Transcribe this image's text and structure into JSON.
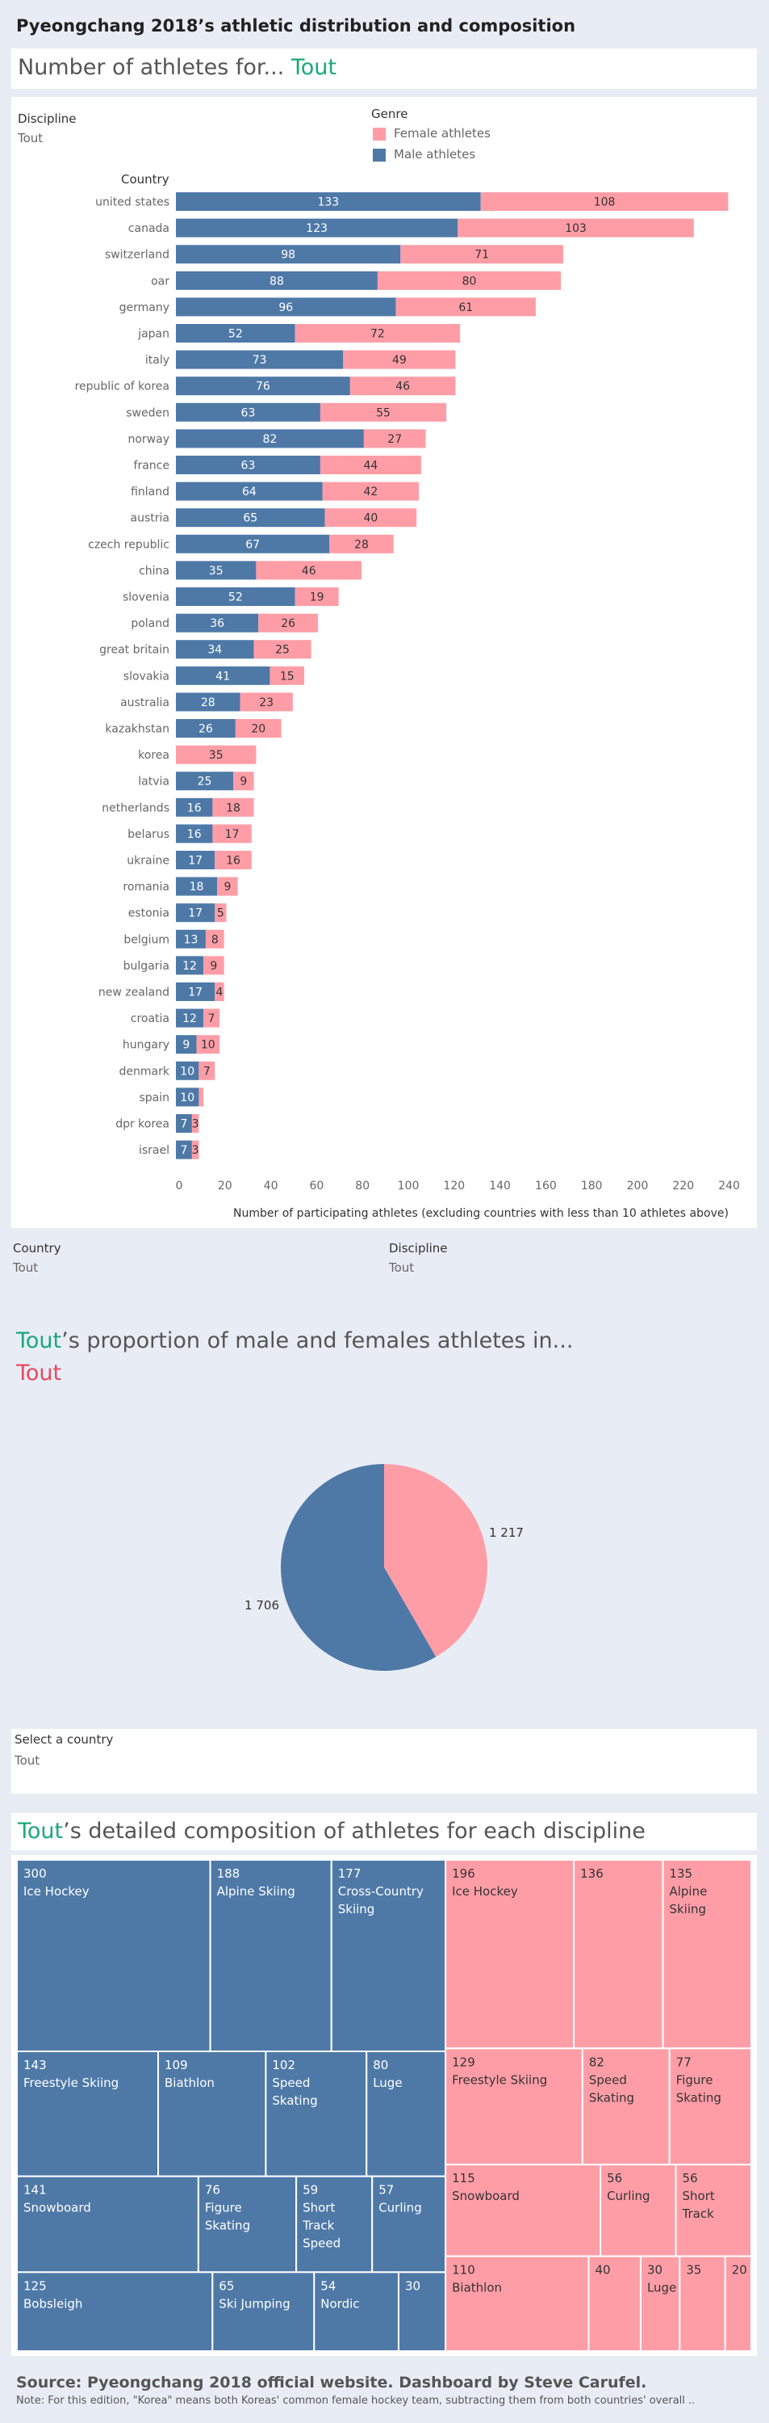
{
  "header": {
    "title": "Pyeongchang 2018’s athletic distribution and composition"
  },
  "section1": {
    "title_prefix": "Number of athletes for... ",
    "title_accent": "Tout"
  },
  "filters_top": {
    "discipline_label": "Discipline",
    "discipline_value": "Tout"
  },
  "legend": {
    "title": "Genre",
    "female_label": "Female athletes",
    "male_label": "Male athletes",
    "female_color": "#ff9da7",
    "male_color": "#4e79a7"
  },
  "filters_bottom": {
    "country_label": "Country",
    "country_value": "Tout",
    "discipline_label": "Discipline",
    "discipline_value": "Tout"
  },
  "pie_section": {
    "title_accent": "Tout",
    "title_rest": "’s proportion of male and females athletes in...",
    "subtitle": "Tout"
  },
  "select_country": {
    "label": "Select a country",
    "value": "Tout"
  },
  "treemap_section": {
    "title_accent": "Tout",
    "title_rest": "’s detailed composition of athletes for each discipline"
  },
  "footer": {
    "source": "Source: Pyeongchang 2018 official website. Dashboard by Steve Carufel.",
    "note": "Note: For this edition, \"Korea\" means both Koreas' common female hockey team, subtracting them from both countries' overall .."
  },
  "chart_data": [
    {
      "type": "bar",
      "orientation": "horizontal",
      "stacked": true,
      "ylabel": "Country",
      "xlabel": "Number of participating athletes (excluding countries with less than 10 athletes above)",
      "xlim": [
        0,
        245
      ],
      "xticks": [
        0,
        20,
        40,
        60,
        80,
        100,
        120,
        140,
        160,
        180,
        200,
        220,
        240
      ],
      "categories": [
        "united states",
        "canada",
        "switzerland",
        "oar",
        "germany",
        "japan",
        "italy",
        "republic of korea",
        "sweden",
        "norway",
        "france",
        "finland",
        "austria",
        "czech republic",
        "china",
        "slovenia",
        "poland",
        "great britain",
        "slovakia",
        "australia",
        "kazakhstan",
        "korea",
        "latvia",
        "netherlands",
        "belarus",
        "ukraine",
        "romania",
        "estonia",
        "belgium",
        "bulgaria",
        "new zealand",
        "croatia",
        "hungary",
        "denmark",
        "spain",
        "dpr korea",
        "israel"
      ],
      "series": [
        {
          "name": "Male athletes",
          "color": "#4e79a7",
          "values": [
            133,
            123,
            98,
            88,
            96,
            52,
            73,
            76,
            63,
            82,
            63,
            64,
            65,
            67,
            35,
            52,
            36,
            34,
            41,
            28,
            26,
            0,
            25,
            16,
            16,
            17,
            18,
            17,
            13,
            12,
            17,
            12,
            9,
            10,
            10,
            7,
            7
          ]
        },
        {
          "name": "Female athletes",
          "color": "#ff9da7",
          "values": [
            108,
            103,
            71,
            80,
            61,
            72,
            49,
            46,
            55,
            27,
            44,
            42,
            40,
            28,
            46,
            19,
            26,
            25,
            15,
            23,
            20,
            35,
            9,
            18,
            17,
            16,
            9,
            5,
            8,
            9,
            4,
            7,
            10,
            7,
            2,
            3,
            3
          ]
        }
      ],
      "data_labels": {
        "male": [
          "133",
          "123",
          "98",
          "88",
          "96",
          "52",
          "73",
          "76",
          "63",
          "82",
          "63",
          "64",
          "65",
          "67",
          "35",
          "52",
          "36",
          "34",
          "41",
          "28",
          "26",
          "",
          "25",
          "16",
          "16",
          "17",
          "18",
          "17",
          "13",
          "12",
          "17",
          "12",
          "9",
          "10",
          "10",
          "7",
          "7"
        ],
        "female": [
          "108",
          "103",
          "71",
          "80",
          "61",
          "72",
          "49",
          "46",
          "55",
          "27",
          "44",
          "42",
          "40",
          "28",
          "46",
          "19",
          "26",
          "25",
          "15",
          "23",
          "20",
          "35",
          "9",
          "18",
          "17",
          "16",
          "9",
          "5",
          "8",
          "9",
          "4",
          "7",
          "10",
          "7",
          "",
          "3",
          "3"
        ]
      }
    },
    {
      "type": "pie",
      "slices": [
        {
          "name": "Female athletes",
          "value": 1217,
          "label": "1 217",
          "color": "#ff9da7"
        },
        {
          "name": "Male athletes",
          "value": 1706,
          "label": "1 706",
          "color": "#4e79a7"
        }
      ]
    },
    {
      "type": "treemap",
      "groups": [
        {
          "name": "Male athletes",
          "color": "#4e79a7",
          "items": [
            {
              "value": 300,
              "label": "Ice Hockey"
            },
            {
              "value": 188,
              "label": "Alpine Skiing"
            },
            {
              "value": 177,
              "label": "Cross-Country Skiing"
            },
            {
              "value": 143,
              "label": "Freestyle Skiing"
            },
            {
              "value": 109,
              "label": "Biathlon"
            },
            {
              "value": 102,
              "label": "Speed Skating"
            },
            {
              "value": 80,
              "label": "Luge"
            },
            {
              "value": 141,
              "label": "Snowboard"
            },
            {
              "value": 76,
              "label": "Figure Skating"
            },
            {
              "value": 59,
              "label": "Short Track Speed"
            },
            {
              "value": 57,
              "label": "Curling"
            },
            {
              "value": 125,
              "label": "Bobsleigh"
            },
            {
              "value": 65,
              "label": "Ski Jumping"
            },
            {
              "value": 54,
              "label": "Nordic"
            },
            {
              "value": 30,
              "label": ""
            }
          ]
        },
        {
          "name": "Female athletes",
          "color": "#ff9da7",
          "items": [
            {
              "value": 196,
              "label": "Ice Hockey"
            },
            {
              "value": 136,
              "label": ""
            },
            {
              "value": 135,
              "label": "Alpine Skiing"
            },
            {
              "value": 129,
              "label": "Freestyle Skiing"
            },
            {
              "value": 82,
              "label": "Speed Skating"
            },
            {
              "value": 77,
              "label": "Figure Skating"
            },
            {
              "value": 115,
              "label": "Snowboard"
            },
            {
              "value": 56,
              "label": "Curling"
            },
            {
              "value": 56,
              "label": "Short Track"
            },
            {
              "value": 110,
              "label": "Biathlon"
            },
            {
              "value": 40,
              "label": ""
            },
            {
              "value": 30,
              "label": "Luge"
            },
            {
              "value": 35,
              "label": ""
            },
            {
              "value": 20,
              "label": ""
            }
          ]
        }
      ]
    }
  ]
}
